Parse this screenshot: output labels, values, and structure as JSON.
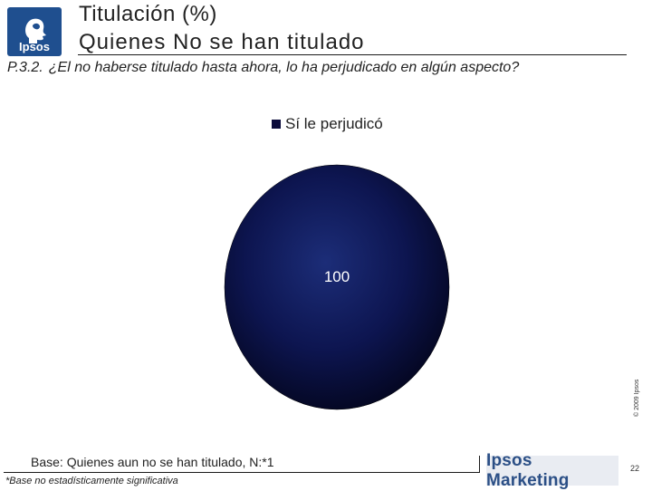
{
  "header": {
    "logo_text": "Ipsos",
    "title_main": "Titulación",
    "title_suffix": "(%)",
    "subtitle": "Quienes No se han titulado"
  },
  "question": {
    "code": "P.3.2.",
    "text": "¿El no haberse titulado hasta ahora, lo ha perjudicado en algún aspecto?"
  },
  "chart_data": {
    "type": "pie",
    "categories": [
      "Sí le perjudicó"
    ],
    "values": [
      100
    ],
    "data_labels": [
      "100"
    ],
    "legend": [
      "Sí le perjudicó"
    ],
    "legend_position": "top",
    "colors": [
      "#0b0b3b"
    ]
  },
  "footer": {
    "copyright": "© 2009 Ipsos",
    "base": "Base: Quienes aun no se han titulado, N:*1",
    "footnote": "*Base no estadísticamente significativa",
    "brand": "Ipsos Marketing",
    "page_number": "22"
  }
}
